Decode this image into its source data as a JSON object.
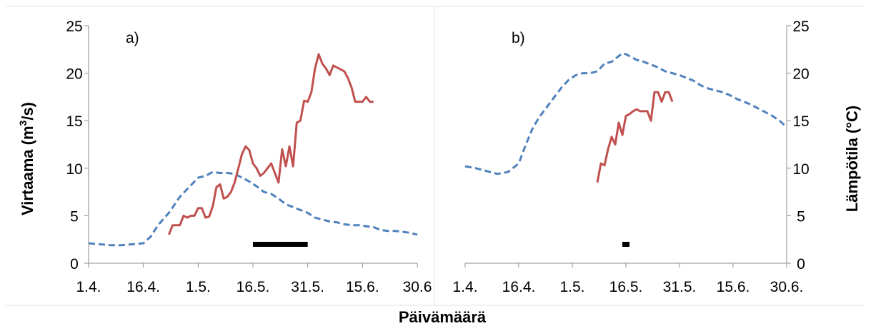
{
  "figure": {
    "xlabel": "Päivämäärä"
  },
  "chart_data": [
    {
      "type": "line",
      "panel_label": "a)",
      "ylabel": "Virtaama (m",
      "ylabel_sup": "3",
      "ylabel_suffix": "/s)",
      "ylim": [
        0,
        25
      ],
      "yticks": [
        "0",
        "5",
        "10",
        "15",
        "20",
        "25"
      ],
      "xlim": [
        0,
        90
      ],
      "xticks": [
        {
          "label": "1.4.",
          "day": 0
        },
        {
          "label": "16.4.",
          "day": 15
        },
        {
          "label": "1.5.",
          "day": 30
        },
        {
          "label": "16.5.",
          "day": 45
        },
        {
          "label": "31.5.",
          "day": 60
        },
        {
          "label": "15.6.",
          "day": 75
        },
        {
          "label": "30.6",
          "day": 90
        }
      ],
      "grid": false,
      "series": [
        {
          "style": "dashed",
          "color": "#4f81bd",
          "x": [
            0,
            3,
            6,
            9,
            12,
            15,
            17,
            19,
            22,
            25,
            28,
            30,
            32,
            34,
            36,
            38,
            40,
            42,
            44,
            46,
            48,
            50,
            52,
            54,
            56,
            58,
            60,
            62,
            64,
            66,
            68,
            70,
            72,
            74,
            76,
            78,
            80,
            82,
            84,
            86,
            88,
            90
          ],
          "values": [
            2.1,
            2.0,
            1.9,
            1.9,
            2.0,
            2.1,
            2.8,
            4.0,
            5.3,
            7.0,
            8.2,
            9.0,
            9.2,
            9.6,
            9.5,
            9.5,
            9.4,
            9.0,
            8.6,
            8.1,
            7.5,
            7.3,
            6.8,
            6.2,
            5.9,
            5.6,
            5.3,
            4.8,
            4.6,
            4.4,
            4.3,
            4.1,
            4.0,
            4.0,
            3.9,
            3.8,
            3.5,
            3.4,
            3.4,
            3.3,
            3.2,
            3.0
          ]
        },
        {
          "style": "solid",
          "color": "#c0504d",
          "x": [
            22,
            23,
            24,
            25,
            26,
            27,
            28,
            29,
            30,
            31,
            32,
            33,
            34,
            35,
            36,
            37,
            38,
            39,
            40,
            41,
            42,
            43,
            44,
            45,
            46,
            47,
            48,
            49,
            50,
            51,
            52,
            53,
            54,
            55,
            56,
            57,
            58,
            59,
            60,
            61,
            62,
            63,
            64,
            65,
            66,
            67,
            68,
            69,
            70,
            71,
            72,
            73,
            74,
            75,
            76,
            77,
            78
          ],
          "values": [
            3.0,
            4.0,
            4.0,
            4.0,
            5.0,
            4.8,
            5.0,
            5.0,
            5.8,
            5.8,
            4.8,
            4.9,
            6.0,
            8.0,
            8.3,
            6.8,
            7.0,
            7.5,
            8.5,
            10.0,
            11.5,
            12.3,
            11.9,
            10.5,
            10.0,
            9.2,
            9.5,
            10.0,
            10.5,
            9.5,
            8.5,
            12.0,
            10.2,
            12.3,
            10.2,
            14.8,
            15.0,
            17.1,
            17.0,
            18.0,
            20.5,
            22.0,
            21.0,
            20.5,
            19.8,
            20.8,
            20.6,
            20.4,
            20.2,
            19.5,
            18.5,
            17.0,
            17.0,
            17.0,
            17.5,
            17.0,
            17.0
          ]
        }
      ],
      "bar": {
        "color": "#000000",
        "x_start": 45,
        "x_end": 60
      }
    },
    {
      "type": "line",
      "panel_label": "b)",
      "ylabel": "Lämpötila (°C)",
      "ylim": [
        0,
        25
      ],
      "yticks": [
        "0",
        "5",
        "10",
        "15",
        "20",
        "25"
      ],
      "xlim": [
        0,
        90
      ],
      "xticks": [
        {
          "label": "1.4.",
          "day": 0
        },
        {
          "label": "16.4.",
          "day": 15
        },
        {
          "label": "1.5.",
          "day": 30
        },
        {
          "label": "16.5.",
          "day": 45
        },
        {
          "label": "31.5.",
          "day": 60
        },
        {
          "label": "15.6.",
          "day": 75
        },
        {
          "label": "30.6.",
          "day": 90
        }
      ],
      "grid": false,
      "series": [
        {
          "style": "dashed",
          "color": "#4f81bd",
          "x": [
            0,
            3,
            6,
            9,
            12,
            15,
            17,
            19,
            21,
            23,
            25,
            27,
            29,
            31,
            33,
            35,
            37,
            39,
            41,
            43,
            44,
            45,
            46,
            48,
            50,
            52,
            54,
            56,
            58,
            60,
            62,
            64,
            66,
            68,
            70,
            72,
            74,
            76,
            78,
            80,
            82,
            84,
            86,
            88,
            90
          ],
          "values": [
            10.2,
            10.0,
            9.7,
            9.4,
            9.6,
            10.5,
            12.5,
            14.3,
            15.5,
            16.5,
            17.5,
            18.5,
            19.3,
            19.8,
            20.0,
            20.0,
            20.2,
            21.0,
            21.2,
            21.8,
            22.1,
            22.0,
            21.8,
            21.4,
            21.2,
            20.9,
            20.6,
            20.2,
            20.0,
            19.8,
            19.5,
            19.2,
            18.7,
            18.4,
            18.2,
            18.0,
            17.7,
            17.3,
            17.0,
            16.7,
            16.3,
            15.9,
            15.5,
            15.0,
            14.3
          ]
        },
        {
          "style": "solid",
          "color": "#c0504d",
          "x": [
            37,
            38,
            39,
            40,
            41,
            42,
            43,
            44,
            45,
            46,
            47,
            48,
            49,
            50,
            51,
            52,
            53,
            54,
            55,
            56,
            57,
            58
          ],
          "values": [
            8.5,
            10.5,
            10.3,
            12.0,
            13.3,
            12.5,
            14.8,
            13.5,
            15.5,
            15.7,
            16.0,
            16.2,
            16.0,
            16.0,
            16.0,
            15.0,
            18.0,
            18.0,
            17.0,
            18.0,
            18.0,
            17.0
          ]
        }
      ],
      "bar": {
        "color": "#000000",
        "x_start": 44,
        "x_end": 46
      }
    }
  ]
}
